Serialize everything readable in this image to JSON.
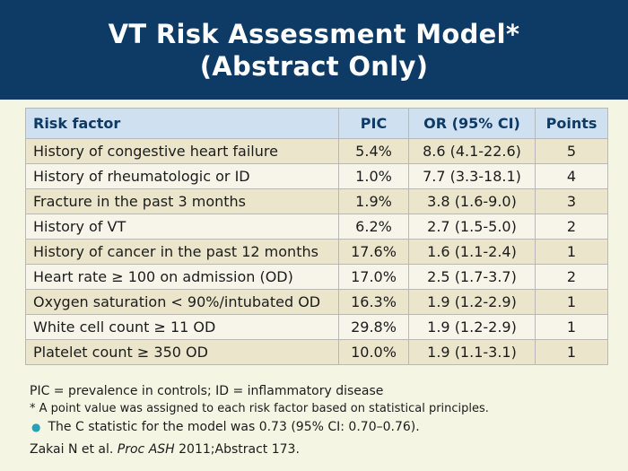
{
  "title": {
    "line1": "VT Risk Assessment Model*",
    "line2": "(Abstract Only)"
  },
  "table": {
    "headers": [
      "Risk factor",
      "PIC",
      "OR (95% CI)",
      "Points"
    ],
    "rows": [
      [
        "History of congestive heart failure",
        "5.4%",
        "8.6 (4.1-22.6)",
        "5"
      ],
      [
        "History of rheumatologic or ID",
        "1.0%",
        "7.7 (3.3-18.1)",
        "4"
      ],
      [
        "Fracture in the past 3 months",
        "1.9%",
        "3.8 (1.6-9.0)",
        "3"
      ],
      [
        "History of VT",
        "6.2%",
        "2.7 (1.5-5.0)",
        "2"
      ],
      [
        "History of cancer in the past 12 months",
        "17.6%",
        "1.6 (1.1-2.4)",
        "1"
      ],
      [
        "Heart rate ≥ 100 on admission (OD)",
        "17.0%",
        "2.5 (1.7-3.7)",
        "2"
      ],
      [
        "Oxygen saturation < 90%/intubated OD",
        "16.3%",
        "1.9 (1.2-2.9)",
        "1"
      ],
      [
        "White cell count ≥ 11 OD",
        "29.8%",
        "1.9 (1.2-2.9)",
        "1"
      ],
      [
        "Platelet count ≥ 350 OD",
        "10.0%",
        "1.9 (1.1-3.1)",
        "1"
      ]
    ]
  },
  "notes": {
    "definitions": "PIC = prevalence in controls; ID = inflammatory disease",
    "footnote": "* A point value was assigned to each risk factor based on statistical principles.",
    "bullet": "The C statistic for the model was 0.73 (95% CI: 0.70–0.76).",
    "citation_pre": "Zakai N et al. ",
    "citation_journal": "Proc ASH",
    "citation_post": " 2011;Abstract 173."
  },
  "colors": {
    "header_bg": "#0e3a66",
    "table_header_bg": "#cfe0f0",
    "row_odd_bg": "#eae5cb",
    "row_even_bg": "#f7f5ea",
    "bullet": "#2aa0b8"
  }
}
